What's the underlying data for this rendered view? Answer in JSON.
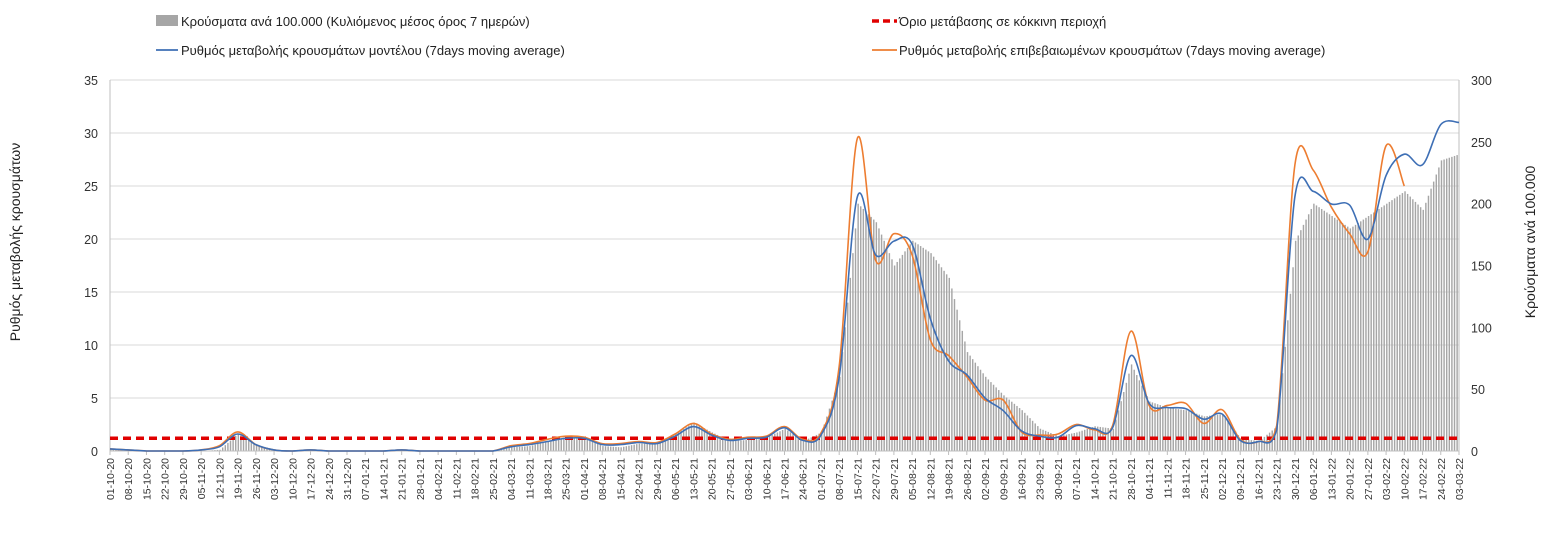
{
  "chart_data": {
    "type": "bar+line",
    "title": "",
    "ylabel_left": "Ρυθμός μεταβολής κρουσμάτων",
    "ylabel_right": "Κρούσματα ανά 100.000",
    "ylim_left": [
      0,
      35
    ],
    "ylim_right": [
      0,
      300
    ],
    "yticks_left": [
      "0",
      "5",
      "10",
      "15",
      "20",
      "25",
      "30",
      "35"
    ],
    "yticks_right": [
      "0",
      "50",
      "100",
      "150",
      "200",
      "250",
      "300"
    ],
    "grid": true,
    "legend_position": "top",
    "x_tick_labels": [
      "01-10-20",
      "08-10-20",
      "15-10-20",
      "22-10-20",
      "29-10-20",
      "05-11-20",
      "12-11-20",
      "19-11-20",
      "26-11-20",
      "03-12-20",
      "10-12-20",
      "17-12-20",
      "24-12-20",
      "31-12-20",
      "07-01-21",
      "14-01-21",
      "21-01-21",
      "28-01-21",
      "04-02-21",
      "11-02-21",
      "18-02-21",
      "25-02-21",
      "04-03-21",
      "11-03-21",
      "18-03-21",
      "25-03-21",
      "01-04-21",
      "08-04-21",
      "15-04-21",
      "22-04-21",
      "29-04-21",
      "06-05-21",
      "13-05-21",
      "20-05-21",
      "27-05-21",
      "03-06-21",
      "10-06-21",
      "17-06-21",
      "24-06-21",
      "01-07-21",
      "08-07-21",
      "15-07-21",
      "22-07-21",
      "29-07-21",
      "05-08-21",
      "12-08-21",
      "19-08-21",
      "26-08-21",
      "02-09-21",
      "09-09-21",
      "16-09-21",
      "23-09-21",
      "30-09-21",
      "07-10-21",
      "14-10-21",
      "21-10-21",
      "28-10-21",
      "04-11-21",
      "11-11-21",
      "18-11-21",
      "25-11-21",
      "02-12-21",
      "09-12-21",
      "16-12-21",
      "23-12-21",
      "30-12-21",
      "06-01-22",
      "13-01-22",
      "20-01-22",
      "27-01-22",
      "03-02-22",
      "10-02-22",
      "17-02-22",
      "24-02-22",
      "03-03-22"
    ],
    "series": [
      {
        "name": "Κρούσματα ανά 100.000 (Κυλιόμενος μέσος όρος 7 ημερών)",
        "type": "bar",
        "axis": "right",
        "color": "#a6a6a6",
        "values": [
          2,
          1,
          0,
          0,
          0,
          0,
          1,
          14,
          5,
          1,
          0,
          1,
          0,
          0,
          0,
          0,
          1,
          0,
          0,
          0,
          0,
          0,
          3,
          4,
          8,
          11,
          10,
          4,
          3,
          6,
          6,
          14,
          23,
          15,
          8,
          9,
          11,
          18,
          8,
          15,
          60,
          200,
          185,
          150,
          170,
          160,
          140,
          80,
          60,
          45,
          33,
          18,
          12,
          15,
          20,
          18,
          70,
          40,
          35,
          33,
          28,
          30,
          10,
          8,
          20,
          170,
          200,
          190,
          180,
          190,
          200,
          210,
          195,
          235,
          240
        ]
      },
      {
        "name": "Όριο μετάβασης σε κόκκινη περιοχή",
        "type": "line",
        "axis": "left",
        "color": "#e00000",
        "dashed": true,
        "values": [
          1.2
        ]
      },
      {
        "name": "Ρυθμός μεταβολής κρουσμάτων μοντέλου (7days moving average)",
        "type": "line",
        "axis": "left",
        "color": "#3e6fb5",
        "values": [
          0.2,
          0.1,
          0,
          0,
          0,
          0.1,
          0.4,
          1.6,
          0.6,
          0.1,
          0,
          0.1,
          0,
          0,
          0,
          0,
          0.1,
          0,
          0,
          0,
          0,
          0,
          0.4,
          0.6,
          0.9,
          1.2,
          1.2,
          0.6,
          0.6,
          0.8,
          0.7,
          1.4,
          2.3,
          1.5,
          1.0,
          1.2,
          1.3,
          2.2,
          1.0,
          1.5,
          7.0,
          24.0,
          18.5,
          19.8,
          19.5,
          12.5,
          8.5,
          7.2,
          5.0,
          3.8,
          1.9,
          1.4,
          1.3,
          2.4,
          2.1,
          2.2,
          9.0,
          4.5,
          4.1,
          4.0,
          3.0,
          3.5,
          1.0,
          0.9,
          2.0,
          24.0,
          24.5,
          23.3,
          23.2,
          20.0,
          26.0,
          28.0,
          27.0,
          30.8,
          31.0
        ]
      },
      {
        "name": "Ρυθμός μεταβολής επιβεβαιωμένων κρουσμάτων (7days moving average)",
        "type": "line",
        "axis": "left",
        "color": "#ed7d31",
        "values": [
          0.2,
          0.1,
          0,
          0,
          0,
          0.1,
          0.5,
          1.8,
          0.6,
          0.1,
          0,
          0.1,
          0,
          0,
          0,
          0,
          0.1,
          0,
          0,
          0,
          0,
          0,
          0.5,
          0.7,
          1.1,
          1.4,
          1.3,
          0.7,
          0.7,
          0.9,
          0.8,
          1.6,
          2.6,
          1.6,
          1.1,
          1.3,
          1.4,
          2.3,
          1.1,
          1.7,
          8.0,
          29.5,
          18.0,
          20.5,
          18.5,
          10.5,
          9.0,
          7.0,
          4.8,
          4.8,
          1.8,
          1.5,
          1.6,
          2.5,
          2.0,
          2.4,
          11.3,
          4.3,
          4.3,
          4.5,
          2.6,
          3.9,
          1.1,
          0.9,
          2.4,
          27.0,
          26.5,
          23.0,
          20.5,
          18.8,
          28.8,
          25.0
        ]
      }
    ]
  }
}
